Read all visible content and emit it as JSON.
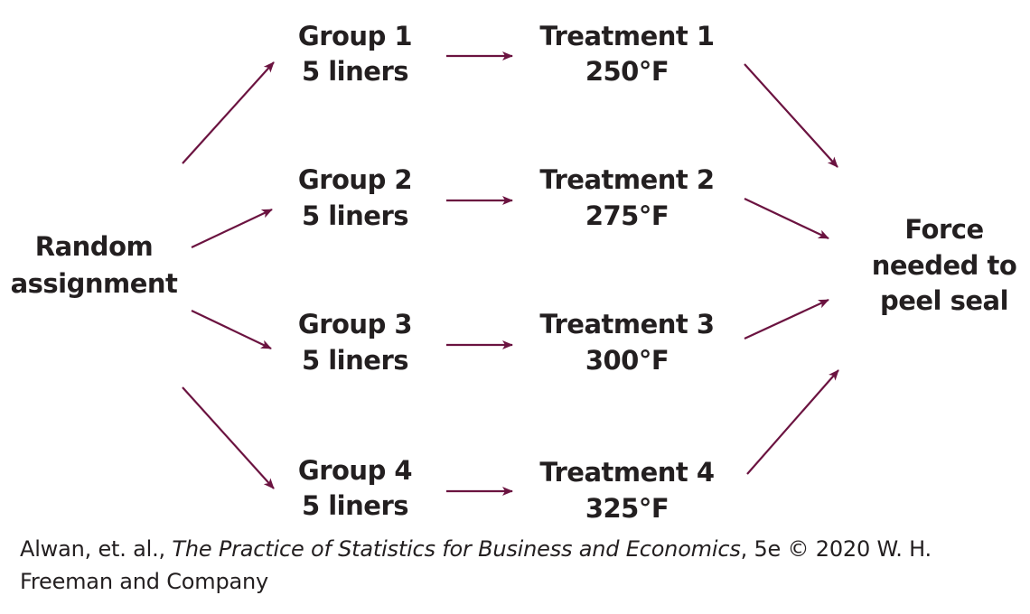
{
  "diagram": {
    "source": {
      "line1": "Random",
      "line2": "assignment"
    },
    "groups": [
      {
        "label": "Group 1",
        "size": "5 liners"
      },
      {
        "label": "Group 2",
        "size": "5 liners"
      },
      {
        "label": "Group 3",
        "size": "5 liners"
      },
      {
        "label": "Group 4",
        "size": "5 liners"
      }
    ],
    "treatments": [
      {
        "label": "Treatment 1",
        "temp": "250°F"
      },
      {
        "label": "Treatment 2",
        "temp": "275°F"
      },
      {
        "label": "Treatment 3",
        "temp": "300°F"
      },
      {
        "label": "Treatment 4",
        "temp": "325°F"
      }
    ],
    "outcome": {
      "line1": "Force",
      "line2": "needed to",
      "line3": "peel seal"
    },
    "arrow_color": "#6b1340"
  },
  "caption": {
    "authors": "Alwan, et. al., ",
    "book_title": "The Practice of Statistics for Business and Economics",
    "edition_copyright": ", 5e © 2020 W. H. Freeman and Company"
  }
}
